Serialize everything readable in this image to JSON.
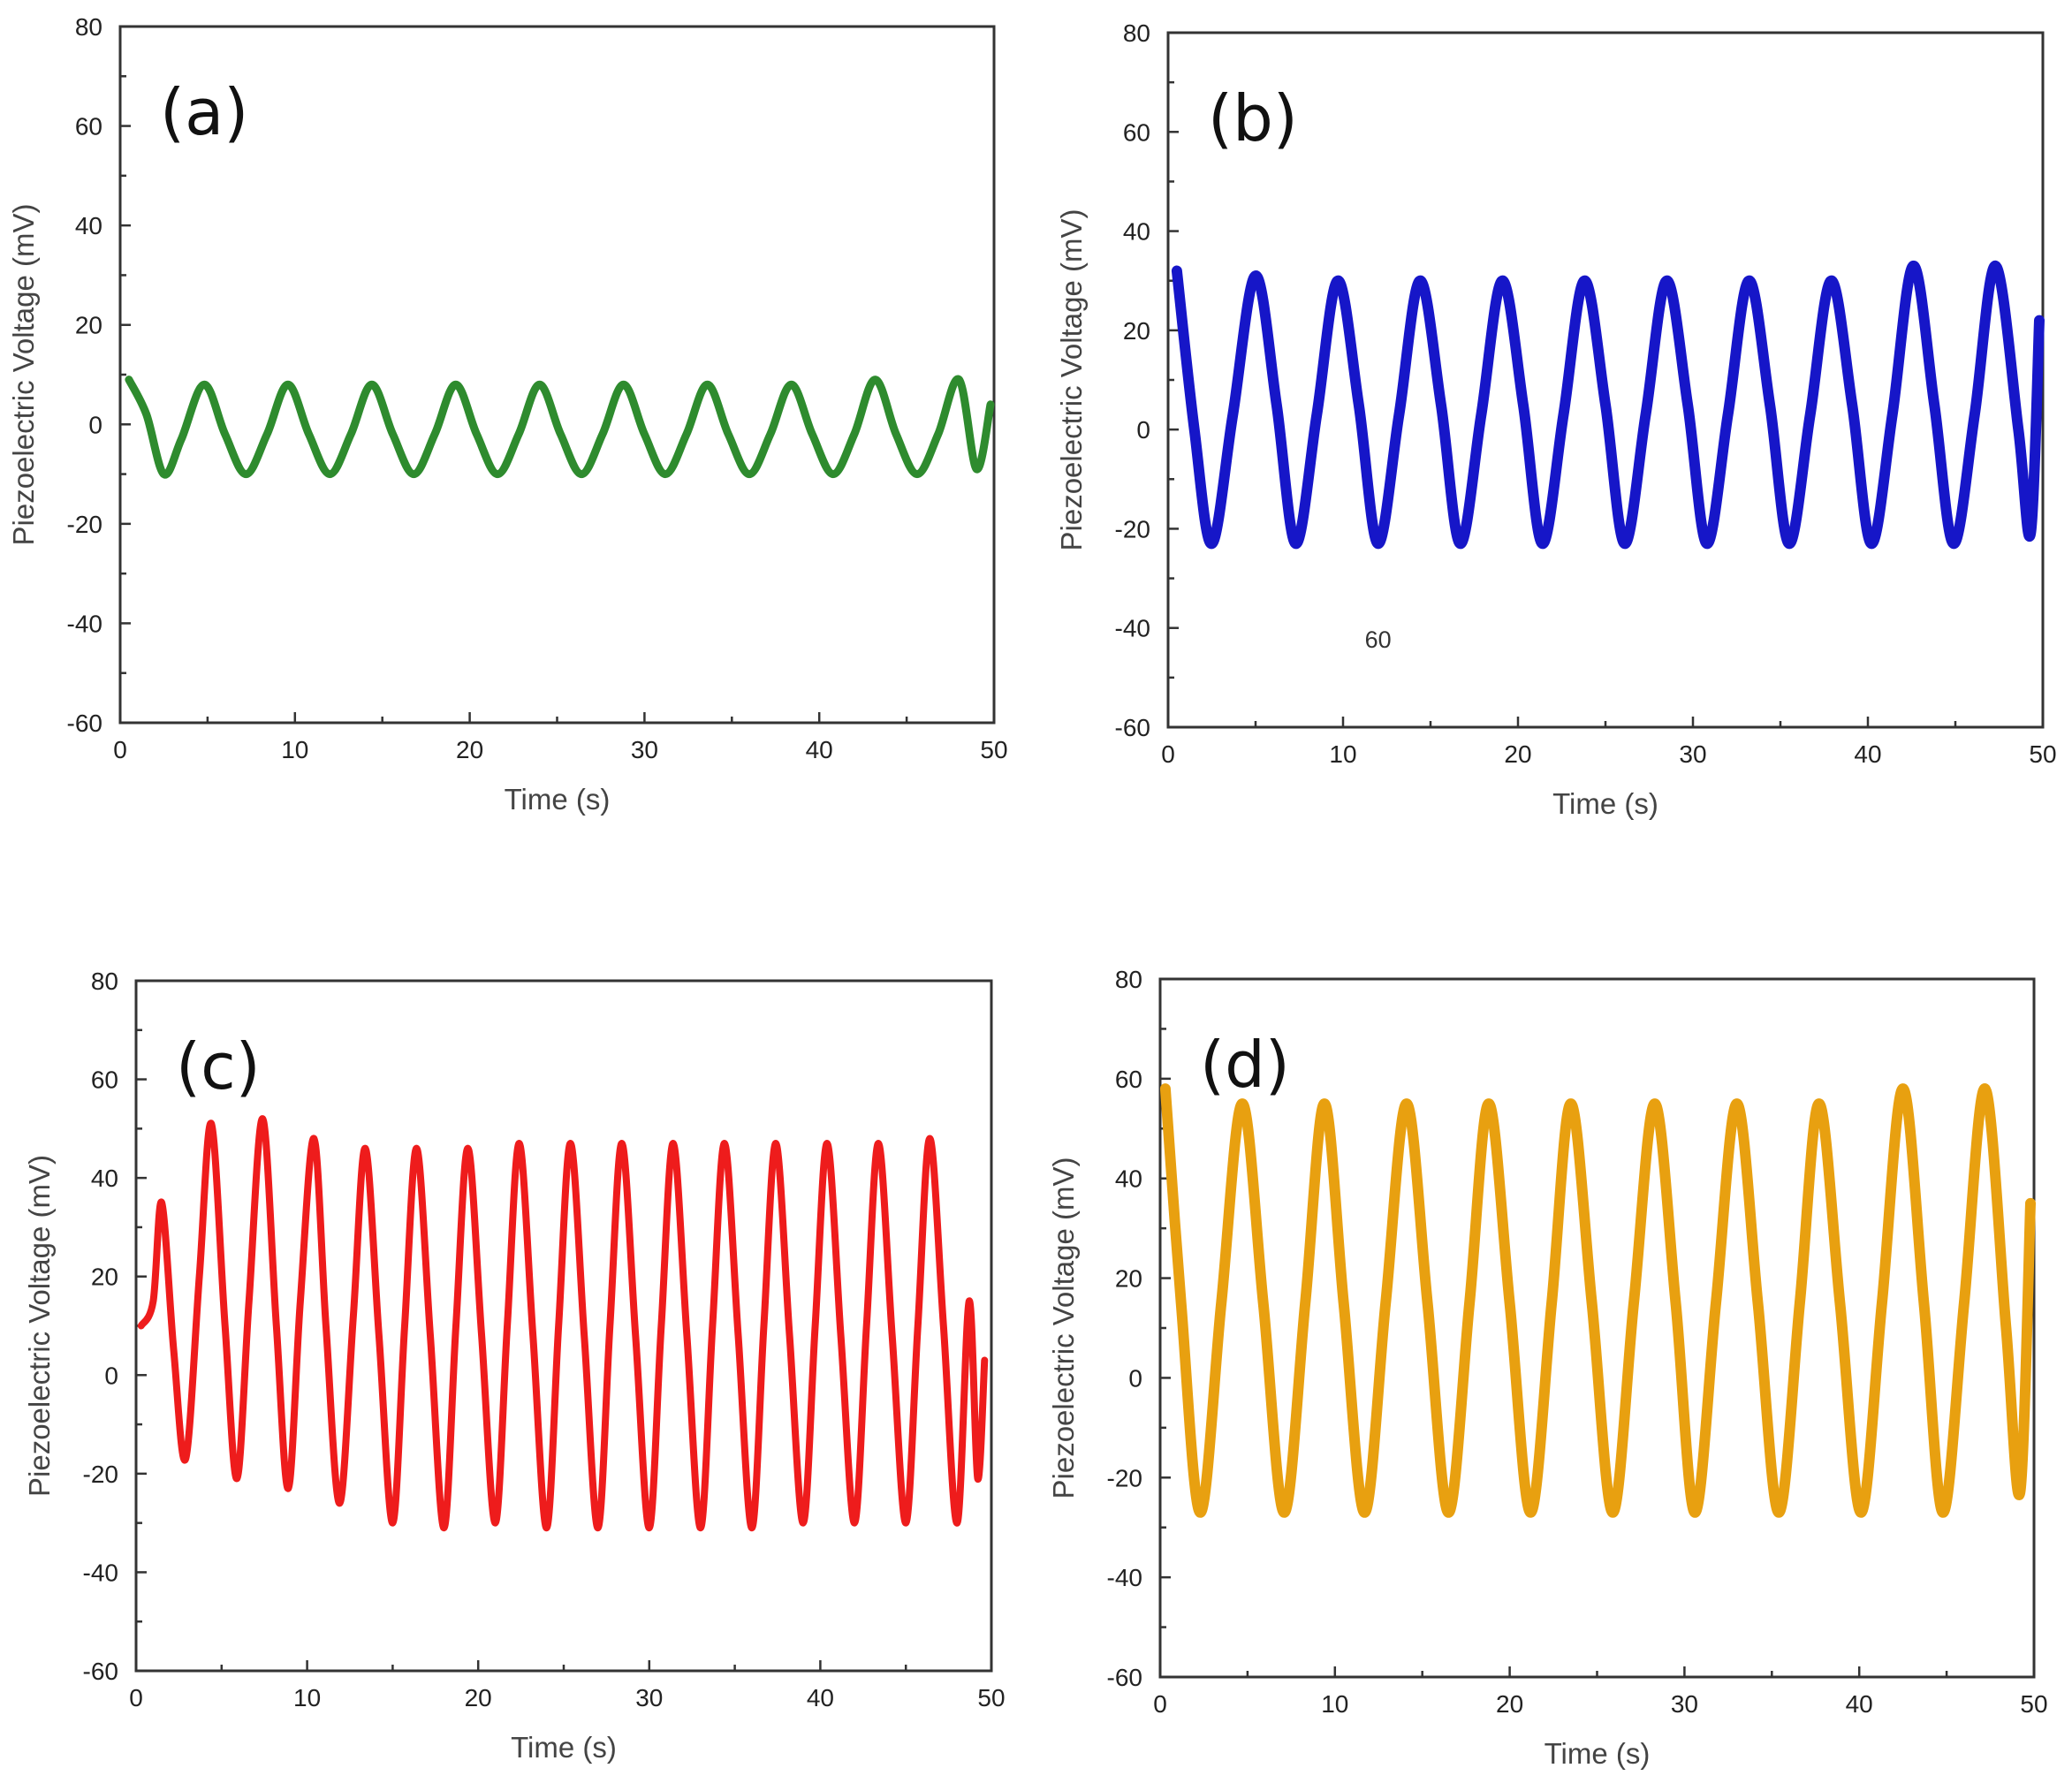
{
  "figure": {
    "panels_count": 4
  },
  "chart_data": [
    {
      "type": "line",
      "panel_label": "(a)",
      "xlabel": "Time (s)",
      "ylabel": "Piezoelectric Voltage (mV)",
      "xlim": [
        0,
        50
      ],
      "ylim": [
        -60,
        80
      ],
      "x_ticks": [
        "0",
        "10",
        "20",
        "30",
        "40",
        "50"
      ],
      "y_ticks": [
        "80",
        "60",
        "40",
        "20",
        "0",
        "-20",
        "-40",
        "-60"
      ],
      "color": "#2e8b2e",
      "annotation": "",
      "series": [
        {
          "name": "(a)",
          "x": [
            0.5,
            1.5,
            2.5,
            3.5,
            4.8,
            6.0,
            7.2,
            8.4,
            9.6,
            10.8,
            12.0,
            13.2,
            14.4,
            15.6,
            16.8,
            18.0,
            19.2,
            20.4,
            21.6,
            22.8,
            24.0,
            25.2,
            26.4,
            27.6,
            28.8,
            30.0,
            31.2,
            32.4,
            33.6,
            34.8,
            36.0,
            37.2,
            38.4,
            39.6,
            40.8,
            42.0,
            43.2,
            44.4,
            45.6,
            46.8,
            48.0,
            49.0,
            49.8
          ],
          "y": [
            9,
            2,
            -10,
            -3,
            8,
            -2,
            -10,
            -2,
            8,
            -2,
            -10,
            -2,
            8,
            -2,
            -10,
            -2,
            8,
            -2,
            -10,
            -2,
            8,
            -2,
            -10,
            -2,
            8,
            -2,
            -10,
            -2,
            8,
            -2,
            -10,
            -2,
            8,
            -2,
            -10,
            -2,
            9,
            -2,
            -10,
            -2,
            9,
            -9,
            4
          ]
        }
      ]
    },
    {
      "type": "line",
      "panel_label": "(b)",
      "xlabel": "Time (s)",
      "ylabel": "Piezoelectric Voltage (mV)",
      "xlim": [
        0,
        50
      ],
      "ylim": [
        -60,
        80
      ],
      "x_ticks": [
        "0",
        "10",
        "20",
        "30",
        "40",
        "50"
      ],
      "y_ticks": [
        "80",
        "60",
        "40",
        "20",
        "0",
        "-20",
        "-40",
        "-60"
      ],
      "color": "#1616c8",
      "annotation": "60",
      "series": [
        {
          "name": "(b)",
          "x": [
            0.5,
            1.5,
            2.5,
            3.7,
            5.0,
            6.2,
            7.3,
            8.5,
            9.7,
            10.9,
            12.0,
            13.2,
            14.4,
            15.6,
            16.7,
            17.9,
            19.1,
            20.3,
            21.4,
            22.6,
            23.8,
            25.0,
            26.1,
            27.3,
            28.5,
            29.7,
            30.8,
            32.0,
            33.2,
            34.4,
            35.5,
            36.7,
            37.9,
            39.1,
            40.2,
            41.4,
            42.6,
            43.8,
            44.9,
            46.1,
            47.3,
            48.6,
            49.3,
            49.8
          ],
          "y": [
            32,
            0,
            -23,
            3,
            31,
            5,
            -23,
            3,
            30,
            5,
            -23,
            3,
            30,
            5,
            -23,
            3,
            30,
            5,
            -23,
            3,
            30,
            5,
            -23,
            3,
            30,
            5,
            -23,
            3,
            30,
            5,
            -23,
            3,
            30,
            5,
            -23,
            3,
            33,
            5,
            -23,
            3,
            33,
            0,
            -21,
            22
          ]
        }
      ]
    },
    {
      "type": "line",
      "panel_label": "(c)",
      "xlabel": "Time (s)",
      "ylabel": "Piezoelectric Voltage (mV)",
      "xlim": [
        0,
        50
      ],
      "ylim": [
        -60,
        80
      ],
      "x_ticks": [
        "0",
        "10",
        "20",
        "30",
        "40",
        "50"
      ],
      "y_ticks": [
        "80",
        "60",
        "40",
        "20",
        "0",
        "-20",
        "-40",
        "-60"
      ],
      "color": "#ee1c1c",
      "annotation": "",
      "series": [
        {
          "name": "(c)",
          "x": [
            0.3,
            1.0,
            1.5,
            2.2,
            2.9,
            3.7,
            4.4,
            5.2,
            5.9,
            6.6,
            7.4,
            8.2,
            8.9,
            9.6,
            10.4,
            11.1,
            11.9,
            12.7,
            13.4,
            14.2,
            15.0,
            15.7,
            16.4,
            17.2,
            18.0,
            18.7,
            19.4,
            20.2,
            21.0,
            21.7,
            22.4,
            23.2,
            24.0,
            24.7,
            25.4,
            26.2,
            27.0,
            27.7,
            28.4,
            29.2,
            30.0,
            30.7,
            31.4,
            32.2,
            33.0,
            33.7,
            34.4,
            35.2,
            36.0,
            36.7,
            37.4,
            38.2,
            39.0,
            39.7,
            40.4,
            41.2,
            42.0,
            42.7,
            43.4,
            44.2,
            45.0,
            45.7,
            46.4,
            47.2,
            48.0,
            48.7,
            49.2,
            49.6
          ],
          "y": [
            10,
            15,
            35,
            5,
            -17,
            20,
            51,
            10,
            -21,
            15,
            52,
            10,
            -23,
            15,
            48,
            10,
            -26,
            12,
            46,
            8,
            -30,
            10,
            46,
            8,
            -31,
            10,
            46,
            8,
            -30,
            10,
            47,
            8,
            -31,
            10,
            47,
            8,
            -31,
            10,
            47,
            8,
            -31,
            10,
            47,
            8,
            -31,
            10,
            47,
            8,
            -31,
            10,
            47,
            8,
            -30,
            10,
            47,
            8,
            -30,
            10,
            47,
            8,
            -30,
            10,
            48,
            10,
            -30,
            15,
            -21,
            3
          ]
        }
      ]
    },
    {
      "type": "line",
      "panel_label": "(d)",
      "xlabel": "Time (s)",
      "ylabel": "Piezoelectric Voltage (mV)",
      "xlim": [
        0,
        50
      ],
      "ylim": [
        -60,
        80
      ],
      "x_ticks": [
        "0",
        "10",
        "20",
        "30",
        "40",
        "50"
      ],
      "y_ticks": [
        "80",
        "60",
        "40",
        "20",
        "0",
        "-20",
        "-40",
        "-60"
      ],
      "color": "#e8a010",
      "annotation": "",
      "series": [
        {
          "name": "(d)",
          "x": [
            0.3,
            1.2,
            2.3,
            3.5,
            4.7,
            5.9,
            7.1,
            8.3,
            9.4,
            10.5,
            11.7,
            12.9,
            14.1,
            15.3,
            16.5,
            17.7,
            18.8,
            20.0,
            21.2,
            22.4,
            23.5,
            24.7,
            25.9,
            27.1,
            28.3,
            29.5,
            30.6,
            31.8,
            33.0,
            34.2,
            35.4,
            36.6,
            37.7,
            38.9,
            40.1,
            41.3,
            42.5,
            43.7,
            44.8,
            46.0,
            47.2,
            48.4,
            49.2,
            49.8
          ],
          "y": [
            58,
            15,
            -27,
            15,
            55,
            15,
            -27,
            15,
            55,
            15,
            -27,
            15,
            55,
            15,
            -27,
            15,
            55,
            15,
            -27,
            15,
            55,
            15,
            -27,
            15,
            55,
            15,
            -27,
            15,
            55,
            15,
            -27,
            15,
            55,
            15,
            -27,
            15,
            58,
            15,
            -27,
            15,
            58,
            10,
            -23,
            35
          ]
        }
      ]
    }
  ]
}
